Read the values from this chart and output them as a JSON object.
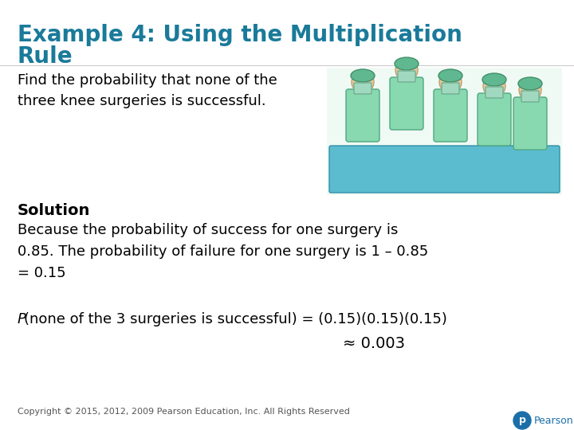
{
  "title_line1": "Example 4: Using the Multiplication",
  "title_line2": "Rule",
  "title_color": "#1a7a9a",
  "title_fontsize": 20,
  "bg_color": "#ffffff",
  "find_text": "Find the probability that none of the\nthree knee surgeries is successful.",
  "find_fontsize": 13,
  "solution_label": "Solution",
  "solution_fontsize": 14,
  "body_text": "Because the probability of success for one surgery is\n0.85. The probability of failure for one surgery is 1 – 0.85\n= 0.15",
  "body_fontsize": 13,
  "formula_line1_italic": "P",
  "formula_line1_rest": "(none of the 3 surgeries is successful) = (0.15)(0.15)(0.15)",
  "formula_line2": "≈ 0.003",
  "formula_fontsize": 13,
  "copyright_text": "Copyright © 2015, 2012, 2009 Pearson Education, Inc. All Rights Reserved",
  "copyright_fontsize": 8,
  "text_color": "#000000",
  "separator_color": "#cccccc",
  "pearson_blue": "#1a6fa8"
}
